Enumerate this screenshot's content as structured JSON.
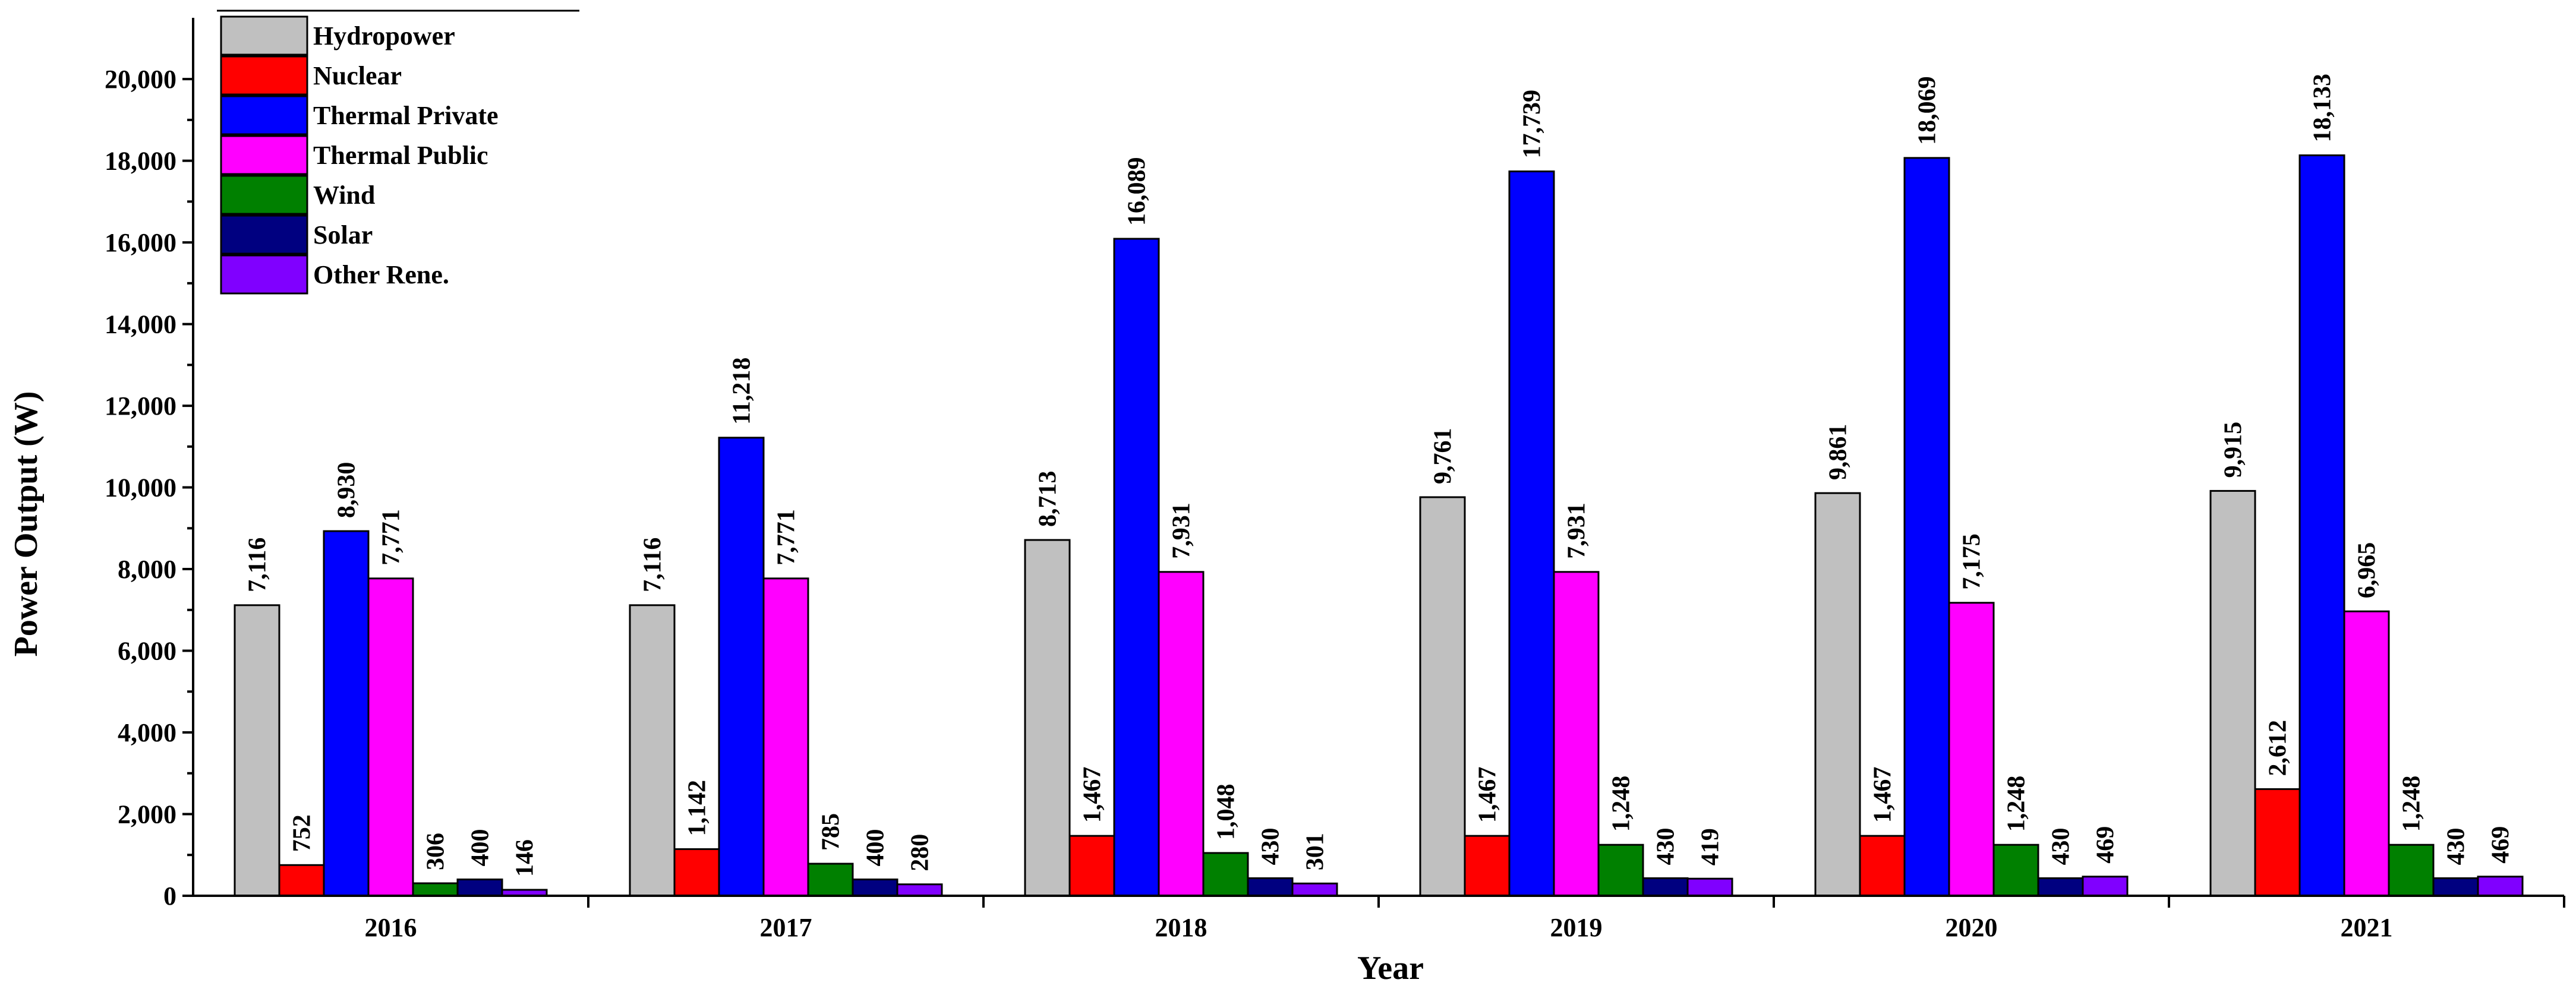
{
  "chart_data": {
    "type": "bar",
    "title": "",
    "xlabel": "Year",
    "ylabel": "Power Output (W)",
    "ylim": [
      0,
      21500
    ],
    "yticks": [
      0,
      2000,
      4000,
      6000,
      8000,
      10000,
      12000,
      14000,
      16000,
      18000,
      20000
    ],
    "ytick_labels": [
      "0",
      "2,000",
      "4,000",
      "6,000",
      "8,000",
      "10,000",
      "12,000",
      "14,000",
      "16,000",
      "18,000",
      "20,000"
    ],
    "categories": [
      "2016",
      "2017",
      "2018",
      "2019",
      "2020",
      "2021"
    ],
    "legend_position": "top-left",
    "grid": false,
    "series": [
      {
        "name": "Hydropower",
        "color": "#c0c0c0",
        "values": [
          7116,
          7116,
          8713,
          9761,
          9861,
          9915
        ],
        "labels": [
          "7,116",
          "7,116",
          "8,713",
          "9,761",
          "9,861",
          "9,915"
        ]
      },
      {
        "name": "Nuclear",
        "color": "#ff0000",
        "values": [
          752,
          1142,
          1467,
          1467,
          1467,
          2612
        ],
        "labels": [
          "752",
          "1,142",
          "1,467",
          "1,467",
          "1,467",
          "2,612"
        ]
      },
      {
        "name": "Thermal Private",
        "color": "#0000ff",
        "values": [
          8930,
          11218,
          16089,
          17739,
          18069,
          18133
        ],
        "labels": [
          "8,930",
          "11,218",
          "16,089",
          "17,739",
          "18,069",
          "18,133"
        ]
      },
      {
        "name": "Thermal Public",
        "color": "#ff00ff",
        "values": [
          7771,
          7771,
          7931,
          7931,
          7175,
          6965
        ],
        "labels": [
          "7,771",
          "7,771",
          "7,931",
          "7,931",
          "7,175",
          "6,965"
        ]
      },
      {
        "name": "Wind",
        "color": "#008000",
        "values": [
          306,
          785,
          1048,
          1248,
          1248,
          1248
        ],
        "labels": [
          "306",
          "785",
          "1,048",
          "1,248",
          "1,248",
          "1,248"
        ]
      },
      {
        "name": "Solar",
        "color": "#000080",
        "values": [
          400,
          400,
          430,
          430,
          430,
          430
        ],
        "labels": [
          "400",
          "400",
          "430",
          "430",
          "430",
          "430"
        ]
      },
      {
        "name": "Other Rene.",
        "color": "#8000ff",
        "values": [
          146,
          280,
          301,
          419,
          469,
          469
        ],
        "labels": [
          "146",
          "280",
          "301",
          "419",
          "469",
          "469"
        ]
      }
    ]
  }
}
